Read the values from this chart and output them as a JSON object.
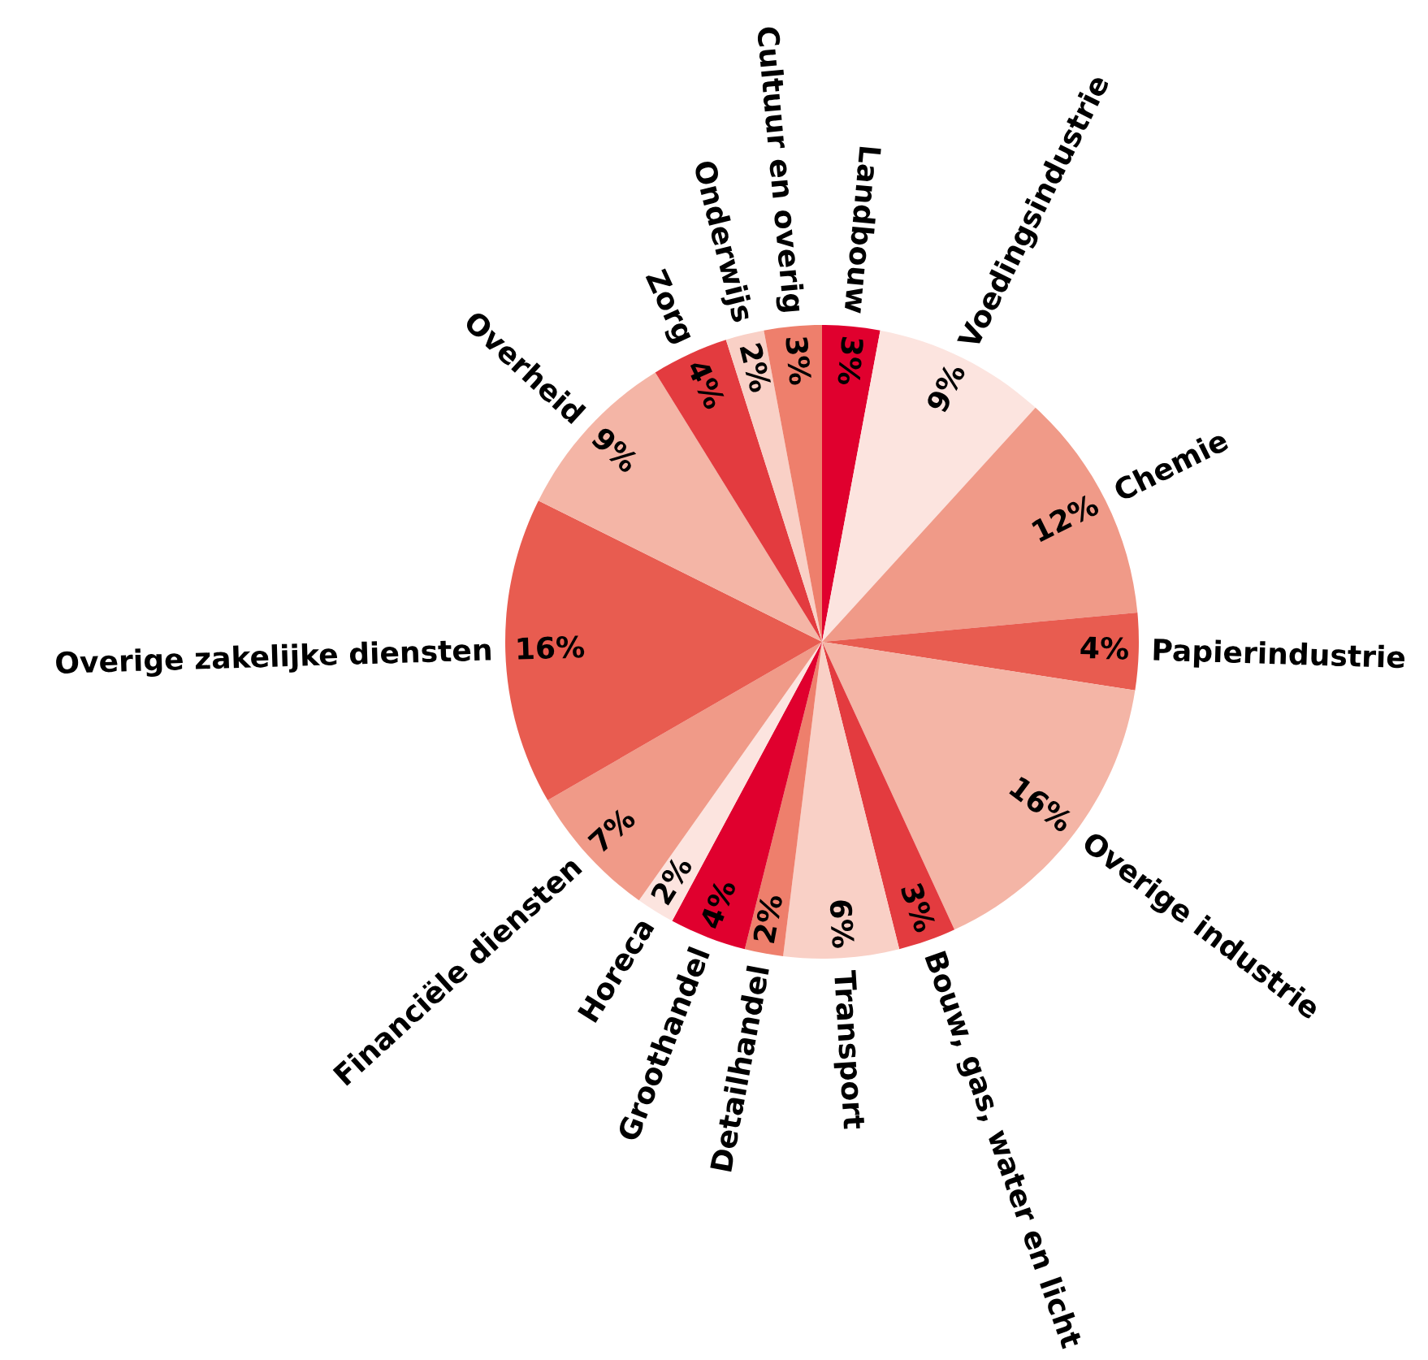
{
  "chart_data": {
    "type": "pie",
    "categories": [
      "Landbouw",
      "Voedingsindustrie",
      "Chemie",
      "Papierindustrie",
      "Overige industrie",
      "Bouw, gas, water en licht",
      "Transport",
      "Detailhandel",
      "Groothandel",
      "Horeca",
      "Financiële diensten",
      "Overige zakelijke diensten",
      "Overheid",
      "Zorg",
      "Onderwijs",
      "Cultuur en overig"
    ],
    "values": [
      3,
      9,
      12,
      4,
      16,
      3,
      6,
      2,
      4,
      2,
      7,
      16,
      9,
      4,
      2,
      3
    ],
    "colors": [
      "#e0002e",
      "#fce4df",
      "#f09a88",
      "#e85c50",
      "#f4b5a6",
      "#e33b3f",
      "#f9d0c6",
      "#ee7f6c",
      "#e0002e",
      "#fce4df",
      "#f09a88",
      "#e85c50",
      "#f4b5a6",
      "#e33b3f",
      "#f9d0c6",
      "#ee7f6c"
    ],
    "value_labels": [
      "3%",
      "9%",
      "12%",
      "4%",
      "16%",
      "3%",
      "6%",
      "2%",
      "4%",
      "2%",
      "7%",
      "16%",
      "9%",
      "4%",
      "2%",
      "3%"
    ]
  }
}
